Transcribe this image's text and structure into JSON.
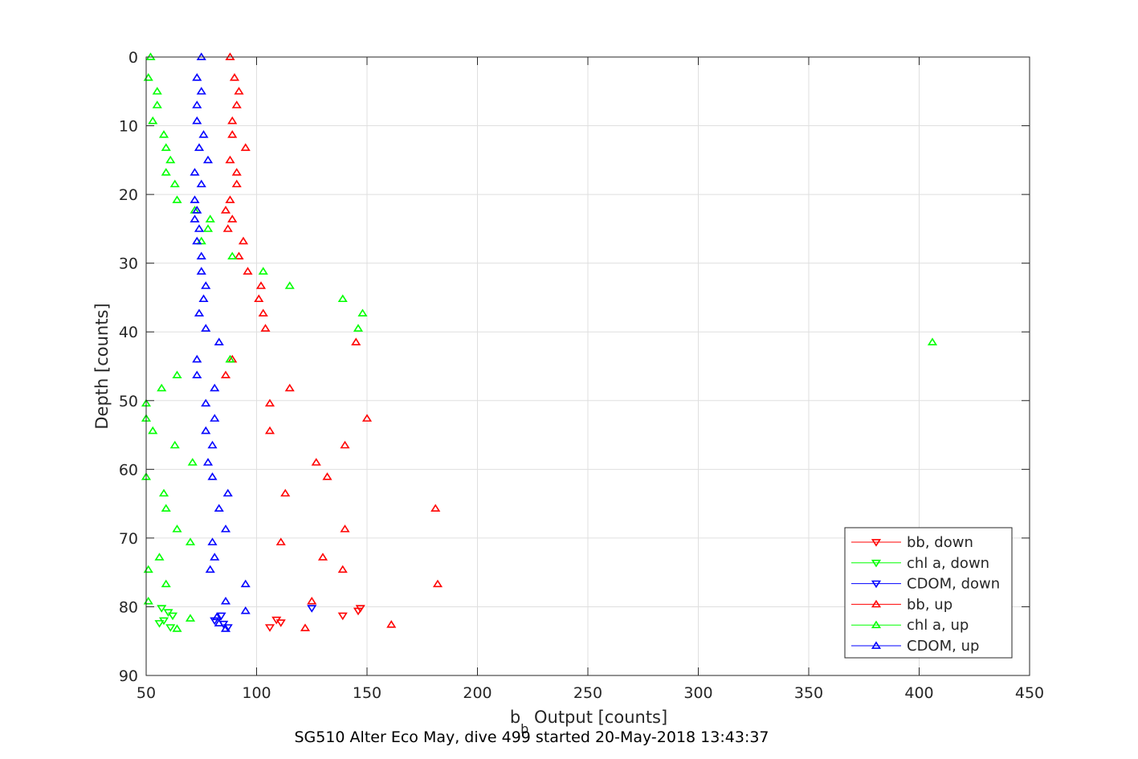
{
  "chart_data": {
    "type": "scatter",
    "title": "SG510 Alter Eco May, dive 499 started 20-May-2018 13:43:37",
    "xlabel_main": "b",
    "xlabel_sub": "b",
    "xlabel_rest": " Output [counts]",
    "ylabel": "Depth [counts]",
    "xlim": [
      50,
      450
    ],
    "ylim": [
      0,
      90
    ],
    "y_reversed": true,
    "grid": true,
    "legend_position": "bottom-right",
    "xticks": [
      "50",
      "100",
      "150",
      "200",
      "250",
      "300",
      "350",
      "400",
      "450"
    ],
    "yticks": [
      "0",
      "10",
      "20",
      "30",
      "40",
      "50",
      "60",
      "70",
      "80",
      "90"
    ],
    "series": [
      {
        "name": "bb, down",
        "color": "#ff0000",
        "marker": "triangle-down",
        "points": [
          [
            147,
            80.2
          ],
          [
            139,
            81.3
          ],
          [
            146,
            80.6
          ],
          [
            109,
            81.9
          ],
          [
            111,
            82.3
          ],
          [
            106,
            83.0
          ]
        ]
      },
      {
        "name": "chl a, down",
        "color": "#00ff00",
        "marker": "triangle-down",
        "points": [
          [
            57,
            80.2
          ],
          [
            60,
            80.8
          ],
          [
            62,
            81.3
          ],
          [
            58,
            82.0
          ],
          [
            56,
            82.4
          ],
          [
            61,
            83.0
          ]
        ]
      },
      {
        "name": "CDOM, down",
        "color": "#0000ff",
        "marker": "triangle-down",
        "points": [
          [
            125,
            80.2
          ],
          [
            84,
            81.3
          ],
          [
            81,
            82.0
          ],
          [
            85,
            82.5
          ],
          [
            87,
            83.0
          ]
        ]
      },
      {
        "name": "bb, up",
        "color": "#ff0000",
        "marker": "triangle-up",
        "points": [
          [
            88,
            0
          ],
          [
            90,
            3
          ],
          [
            92,
            5
          ],
          [
            91,
            7
          ],
          [
            89,
            9.3
          ],
          [
            89,
            11.3
          ],
          [
            95,
            13.2
          ],
          [
            88,
            15
          ],
          [
            91,
            16.8
          ],
          [
            91,
            18.5
          ],
          [
            88,
            20.8
          ],
          [
            86,
            22.3
          ],
          [
            89,
            23.6
          ],
          [
            87,
            25
          ],
          [
            94,
            26.8
          ],
          [
            92,
            29
          ],
          [
            96,
            31.2
          ],
          [
            102,
            33.3
          ],
          [
            101,
            35.2
          ],
          [
            103,
            37.3
          ],
          [
            104,
            39.5
          ],
          [
            145,
            41.5
          ],
          [
            89,
            44
          ],
          [
            86,
            46.3
          ],
          [
            115,
            48.2
          ],
          [
            106,
            50.4
          ],
          [
            150,
            52.6
          ],
          [
            106,
            54.4
          ],
          [
            140,
            56.5
          ],
          [
            127,
            59
          ],
          [
            132,
            61.1
          ],
          [
            113,
            63.5
          ],
          [
            181,
            65.7
          ],
          [
            140,
            68.7
          ],
          [
            111,
            70.6
          ],
          [
            130,
            72.8
          ],
          [
            139,
            74.6
          ],
          [
            182,
            76.7
          ],
          [
            125,
            79.2
          ],
          [
            161,
            82.6
          ],
          [
            122,
            83.1
          ]
        ]
      },
      {
        "name": "chl a, up",
        "color": "#00ff00",
        "marker": "triangle-up",
        "points": [
          [
            52,
            0
          ],
          [
            51,
            3
          ],
          [
            55,
            5
          ],
          [
            55,
            7
          ],
          [
            53,
            9.3
          ],
          [
            58,
            11.3
          ],
          [
            59,
            13.2
          ],
          [
            61,
            15
          ],
          [
            59,
            16.8
          ],
          [
            63,
            18.5
          ],
          [
            64,
            20.8
          ],
          [
            72,
            22.3
          ],
          [
            79,
            23.6
          ],
          [
            78,
            25
          ],
          [
            75,
            26.8
          ],
          [
            89,
            29
          ],
          [
            103,
            31.2
          ],
          [
            115,
            33.3
          ],
          [
            139,
            35.2
          ],
          [
            148,
            37.3
          ],
          [
            146,
            39.5
          ],
          [
            406,
            41.5
          ],
          [
            88,
            44
          ],
          [
            64,
            46.3
          ],
          [
            57,
            48.2
          ],
          [
            50,
            50.4
          ],
          [
            50,
            52.6
          ],
          [
            53,
            54.4
          ],
          [
            63,
            56.5
          ],
          [
            71,
            59
          ],
          [
            50,
            61.1
          ],
          [
            58,
            63.5
          ],
          [
            59,
            65.7
          ],
          [
            64,
            68.7
          ],
          [
            70,
            70.6
          ],
          [
            56,
            72.8
          ],
          [
            51,
            74.6
          ],
          [
            59,
            76.7
          ],
          [
            51,
            79.2
          ],
          [
            70,
            81.7
          ],
          [
            64,
            83.2
          ]
        ]
      },
      {
        "name": "CDOM, up",
        "color": "#0000ff",
        "marker": "triangle-up",
        "points": [
          [
            75,
            0
          ],
          [
            73,
            3
          ],
          [
            75,
            5
          ],
          [
            73,
            7
          ],
          [
            73,
            9.3
          ],
          [
            76,
            11.3
          ],
          [
            74,
            13.2
          ],
          [
            78,
            15
          ],
          [
            72,
            16.8
          ],
          [
            75,
            18.5
          ],
          [
            72,
            20.8
          ],
          [
            73,
            22.3
          ],
          [
            72,
            23.6
          ],
          [
            74,
            25
          ],
          [
            73,
            26.8
          ],
          [
            75,
            29
          ],
          [
            75,
            31.2
          ],
          [
            77,
            33.3
          ],
          [
            76,
            35.2
          ],
          [
            74,
            37.3
          ],
          [
            77,
            39.5
          ],
          [
            83,
            41.5
          ],
          [
            73,
            44
          ],
          [
            73,
            46.3
          ],
          [
            81,
            48.2
          ],
          [
            77,
            50.4
          ],
          [
            81,
            52.6
          ],
          [
            77,
            54.4
          ],
          [
            80,
            56.5
          ],
          [
            78,
            59
          ],
          [
            80,
            61.1
          ],
          [
            87,
            63.5
          ],
          [
            83,
            65.7
          ],
          [
            86,
            68.7
          ],
          [
            80,
            70.6
          ],
          [
            81,
            72.8
          ],
          [
            79,
            74.6
          ],
          [
            95,
            76.7
          ],
          [
            86,
            79.2
          ],
          [
            95,
            80.6
          ],
          [
            82,
            81.5
          ],
          [
            83,
            82.4
          ],
          [
            86,
            83.2
          ]
        ]
      }
    ]
  }
}
